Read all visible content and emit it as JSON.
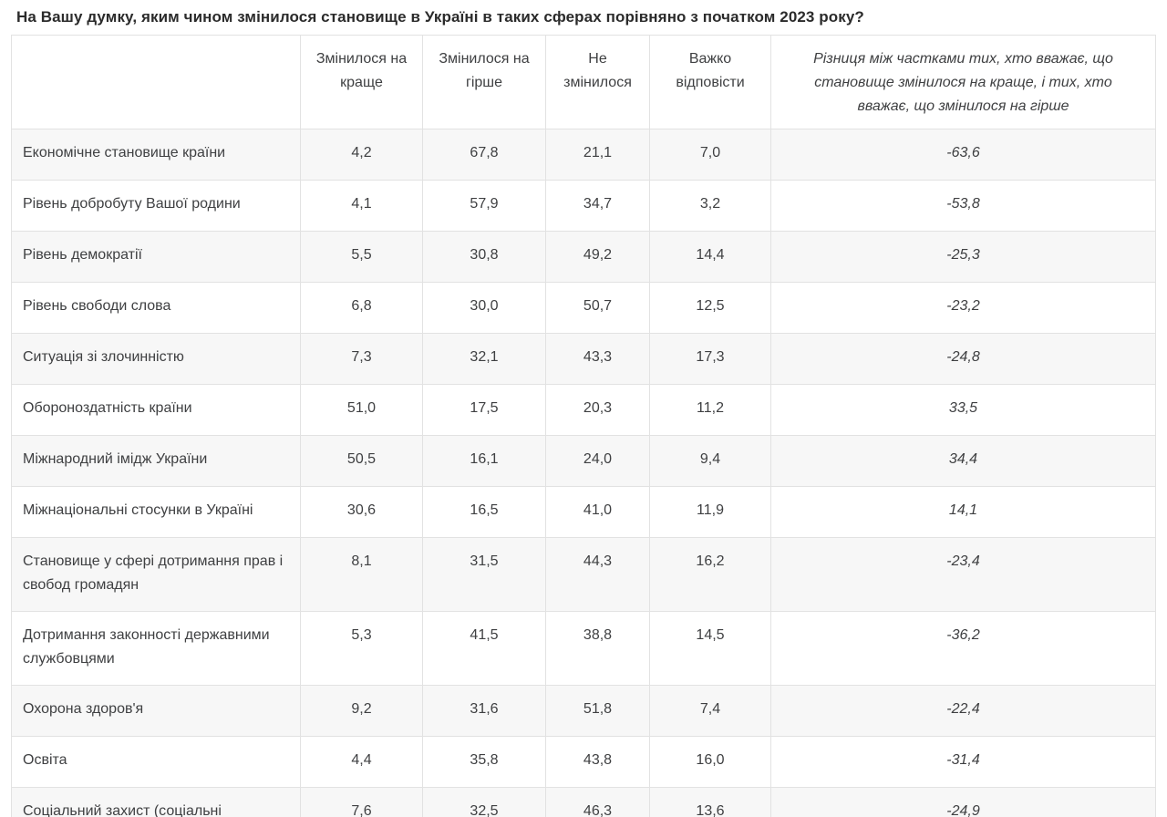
{
  "title": "На Вашу думку, яким чином змінилося становище в Україні в таких сферах порівняно з початком 2023 року?",
  "colors": {
    "stripe_row_bg": "#f7f7f7",
    "plain_row_bg": "#ffffff",
    "border": "#e2e2e2",
    "text": "#3f4042",
    "title_text": "#2b2b2b"
  },
  "chart_data": {
    "type": "table",
    "title": "На Вашу думку, яким чином змінилося становище в Україні в таких сферах порівняно з початком 2023 року?",
    "decimal_separator": ",",
    "columns": [
      "",
      "Змінилося на краще",
      "Змінилося на гірше",
      "Не змінилося",
      "Важко відповісти",
      "Різниця між частками тих, хто вважає, що становище змінилося на краще, і тих, хто вважає, що змінилося на гірше"
    ],
    "rows": [
      {
        "label": "Економічне становище країни",
        "values": [
          4.2,
          67.8,
          21.1,
          7.0
        ],
        "diff": -63.6
      },
      {
        "label": "Рівень добробуту Вашої родини",
        "values": [
          4.1,
          57.9,
          34.7,
          3.2
        ],
        "diff": -53.8
      },
      {
        "label": "Рівень демократії",
        "values": [
          5.5,
          30.8,
          49.2,
          14.4
        ],
        "diff": -25.3
      },
      {
        "label": "Рівень свободи слова",
        "values": [
          6.8,
          30.0,
          50.7,
          12.5
        ],
        "diff": -23.2
      },
      {
        "label": "Ситуація зі злочинністю",
        "values": [
          7.3,
          32.1,
          43.3,
          17.3
        ],
        "diff": -24.8
      },
      {
        "label": "Обороноздатність країни",
        "values": [
          51.0,
          17.5,
          20.3,
          11.2
        ],
        "diff": 33.5
      },
      {
        "label": "Міжнародний імідж України",
        "values": [
          50.5,
          16.1,
          24.0,
          9.4
        ],
        "diff": 34.4
      },
      {
        "label": "Міжнаціональні стосунки в Україні",
        "values": [
          30.6,
          16.5,
          41.0,
          11.9
        ],
        "diff": 14.1
      },
      {
        "label": "Становище у сфері дотримання прав і свобод громадян",
        "values": [
          8.1,
          31.5,
          44.3,
          16.2
        ],
        "diff": -23.4
      },
      {
        "label": "Дотримання законності державними службовцями",
        "values": [
          5.3,
          41.5,
          38.8,
          14.5
        ],
        "diff": -36.2
      },
      {
        "label": "Охорона здоров'я",
        "values": [
          9.2,
          31.6,
          51.8,
          7.4
        ],
        "diff": -22.4
      },
      {
        "label": "Освіта",
        "values": [
          4.4,
          35.8,
          43.8,
          16.0
        ],
        "diff": -31.4
      },
      {
        "label": "Соціальний захист (соціальні",
        "values": [
          7.6,
          32.5,
          46.3,
          13.6
        ],
        "diff": -24.9
      }
    ]
  }
}
